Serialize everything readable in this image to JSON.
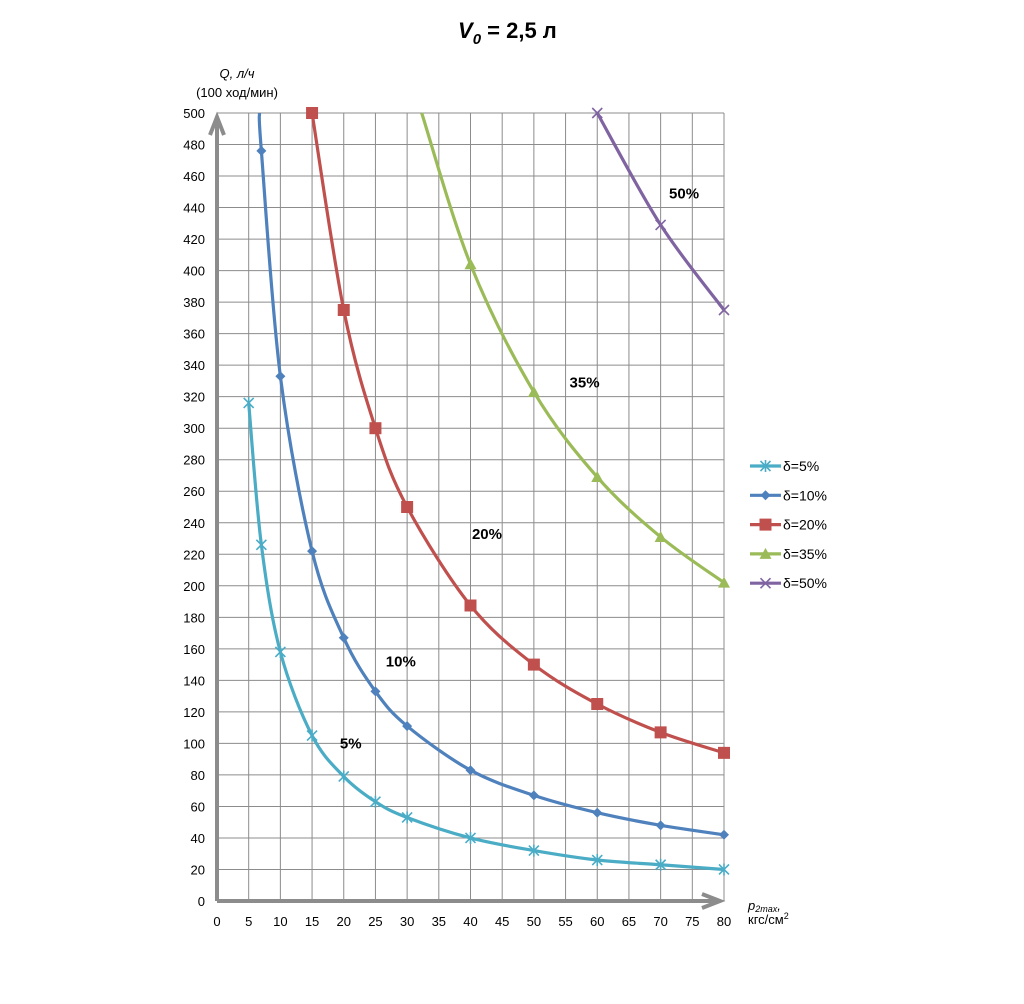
{
  "chart_data": {
    "type": "line",
    "title": "V",
    "title_sub": "0",
    "title_rest": " = 2,5 л",
    "ylabel": "Q, л/ч",
    "ylabel2": "(100 ход/мин)",
    "xlabel": "p",
    "xlabel_sub": "2max",
    "xlabel_comma": ",",
    "xlabel2": "кгс/см",
    "xlabel2_sup": "2",
    "xlim": [
      0,
      80
    ],
    "ylim": [
      0,
      500
    ],
    "xticks": [
      0,
      5,
      10,
      15,
      20,
      25,
      30,
      35,
      40,
      45,
      50,
      55,
      60,
      65,
      70,
      75,
      80
    ],
    "yticks": [
      0,
      20,
      40,
      60,
      80,
      100,
      120,
      140,
      160,
      180,
      200,
      220,
      240,
      260,
      280,
      300,
      320,
      340,
      360,
      380,
      400,
      420,
      440,
      460,
      480,
      500
    ],
    "grid": true,
    "legend_position": "right",
    "series": [
      {
        "name": "δ=5%",
        "color": "#4bacc6",
        "marker": "star",
        "points": [
          [
            5,
            316
          ],
          [
            7,
            226
          ],
          [
            10,
            158
          ],
          [
            15,
            105
          ],
          [
            20,
            79
          ],
          [
            25,
            63
          ],
          [
            30,
            53
          ],
          [
            40,
            40
          ],
          [
            50,
            32
          ],
          [
            60,
            26
          ],
          [
            70,
            23
          ],
          [
            80,
            20
          ]
        ]
      },
      {
        "name": "δ=10%",
        "color": "#4f81bd",
        "marker": "diamond",
        "line_start": [
          6.7,
          500
        ],
        "points": [
          [
            7,
            476
          ],
          [
            10,
            333
          ],
          [
            15,
            222
          ],
          [
            20,
            167
          ],
          [
            25,
            133
          ],
          [
            30,
            111
          ],
          [
            40,
            83
          ],
          [
            50,
            67
          ],
          [
            60,
            56
          ],
          [
            70,
            48
          ],
          [
            80,
            42
          ]
        ]
      },
      {
        "name": "δ=20%",
        "color": "#c0504d",
        "marker": "square",
        "points": [
          [
            15,
            500
          ],
          [
            20,
            375
          ],
          [
            25,
            300
          ],
          [
            30,
            250
          ],
          [
            40,
            187.5
          ],
          [
            50,
            150
          ],
          [
            60,
            125
          ],
          [
            70,
            107
          ],
          [
            80,
            94
          ]
        ]
      },
      {
        "name": "δ=35%",
        "color": "#9bbb59",
        "marker": "triangle",
        "line_start": [
          32.3,
          500
        ],
        "points": [
          [
            40,
            404
          ],
          [
            50,
            323
          ],
          [
            60,
            269
          ],
          [
            70,
            231
          ],
          [
            80,
            202
          ]
        ]
      },
      {
        "name": "δ=50%",
        "color": "#8064a2",
        "marker": "x",
        "points": [
          [
            60,
            500
          ],
          [
            70,
            429
          ],
          [
            80,
            375
          ]
        ]
      }
    ],
    "annotations": [
      {
        "text": "5%",
        "x": 21.1,
        "y": 100
      },
      {
        "text": "10%",
        "x": 29,
        "y": 152
      },
      {
        "text": "20%",
        "x": 42.6,
        "y": 233
      },
      {
        "text": "35%",
        "x": 58,
        "y": 329
      },
      {
        "text": "50%",
        "x": 73.7,
        "y": 449
      }
    ]
  }
}
